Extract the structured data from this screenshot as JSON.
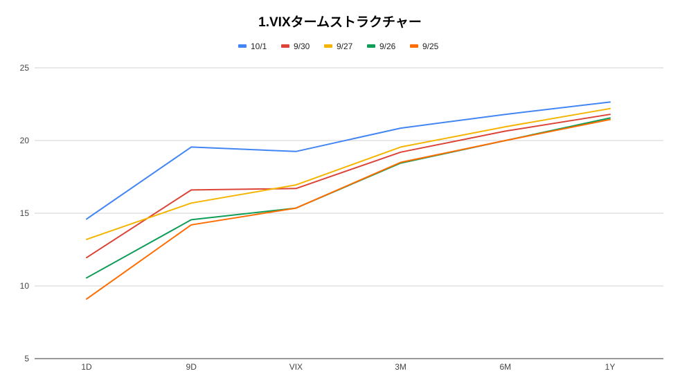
{
  "chart_data": {
    "type": "line",
    "title": "1.VIXタームストラクチャー",
    "xlabel": "",
    "ylabel": "",
    "categories": [
      "1D",
      "9D",
      "VIX",
      "3M",
      "6M",
      "1Y"
    ],
    "ylim": [
      5,
      25
    ],
    "yticks": [
      5,
      10,
      15,
      20,
      25
    ],
    "grid": true,
    "legend_position": "top",
    "series": [
      {
        "name": "10/1",
        "color": "#4285F4",
        "values": [
          14.6,
          19.55,
          19.25,
          20.85,
          21.8,
          22.65
        ]
      },
      {
        "name": "9/30",
        "color": "#DB4437",
        "values": [
          11.95,
          16.6,
          16.7,
          19.2,
          20.65,
          21.8
        ]
      },
      {
        "name": "9/27",
        "color": "#F4B400",
        "values": [
          13.2,
          15.7,
          16.95,
          19.55,
          20.95,
          22.2
        ]
      },
      {
        "name": "9/26",
        "color": "#0F9D58",
        "values": [
          10.55,
          14.55,
          15.35,
          18.45,
          20.0,
          21.55
        ]
      },
      {
        "name": "9/25",
        "color": "#FF6D00",
        "values": [
          9.1,
          14.2,
          15.35,
          18.5,
          20.0,
          21.45
        ]
      }
    ]
  }
}
